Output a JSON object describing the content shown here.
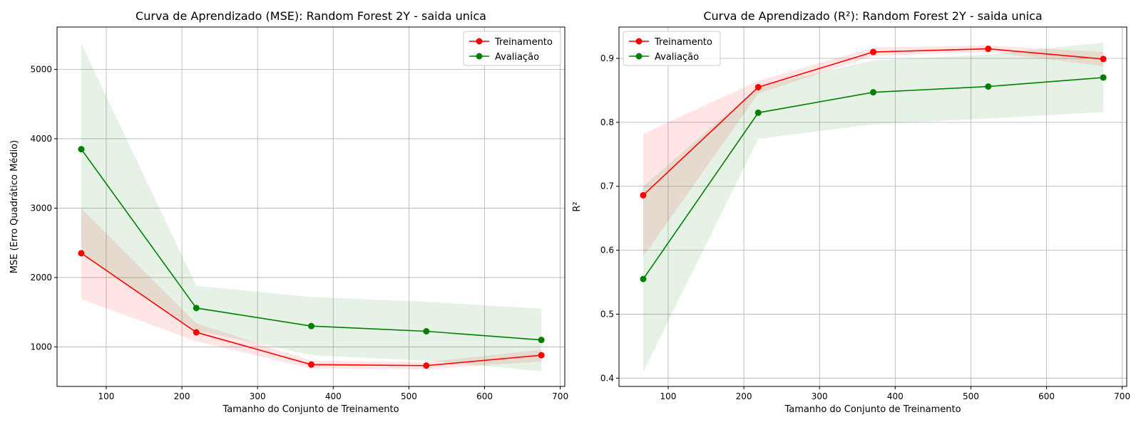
{
  "figure": {
    "colors": {
      "train": "#ff0000",
      "val": "#008000",
      "grid": "#b0b0b0",
      "axis": "#000000"
    }
  },
  "chart_data": [
    {
      "type": "line",
      "title": "Curva de Aprendizado (MSE): Random Forest 2Y - saida unica",
      "xlabel": "Tamanho do Conjunto de Treinamento",
      "ylabel": "MSE (Erro Quadrático Médio)",
      "xlim": [
        35,
        706
      ],
      "ylim": [
        430,
        5610
      ],
      "xticks": [
        100,
        200,
        300,
        400,
        500,
        600,
        700
      ],
      "yticks": [
        1000,
        2000,
        3000,
        4000,
        5000
      ],
      "grid": true,
      "legend_position": "upper right",
      "x": [
        67,
        219,
        371,
        523,
        675
      ],
      "series": [
        {
          "name": "Treinamento",
          "color": "#ff0000",
          "values": [
            2350,
            1210,
            745,
            730,
            880
          ],
          "lower": [
            1690,
            1080,
            690,
            680,
            790
          ],
          "upper": [
            3000,
            1340,
            800,
            780,
            960
          ]
        },
        {
          "name": "Avaliação",
          "color": "#008000",
          "values": [
            3850,
            1560,
            1300,
            1225,
            1100
          ],
          "lower": [
            2340,
            1240,
            880,
            800,
            650
          ],
          "upper": [
            5370,
            1880,
            1720,
            1650,
            1550
          ]
        }
      ]
    },
    {
      "type": "line",
      "title": "Curva de Aprendizado (R²): Random Forest 2Y - saida unica",
      "xlabel": "Tamanho do Conjunto de Treinamento",
      "ylabel": "R²",
      "xlim": [
        35,
        706
      ],
      "ylim": [
        0.387,
        0.949
      ],
      "xticks": [
        100,
        200,
        300,
        400,
        500,
        600,
        700
      ],
      "yticks": [
        0.4,
        0.5,
        0.6,
        0.7,
        0.8,
        0.9
      ],
      "grid": true,
      "legend_position": "upper left",
      "x": [
        67,
        219,
        371,
        523,
        675
      ],
      "series": [
        {
          "name": "Treinamento",
          "color": "#ff0000",
          "values": [
            0.686,
            0.855,
            0.91,
            0.915,
            0.899
          ],
          "lower": [
            0.59,
            0.845,
            0.904,
            0.91,
            0.888
          ],
          "upper": [
            0.782,
            0.865,
            0.917,
            0.92,
            0.91
          ]
        },
        {
          "name": "Avaliação",
          "color": "#008000",
          "values": [
            0.555,
            0.815,
            0.847,
            0.856,
            0.87
          ],
          "lower": [
            0.41,
            0.774,
            0.797,
            0.806,
            0.816
          ],
          "upper": [
            0.7,
            0.856,
            0.897,
            0.906,
            0.925
          ]
        }
      ]
    }
  ]
}
